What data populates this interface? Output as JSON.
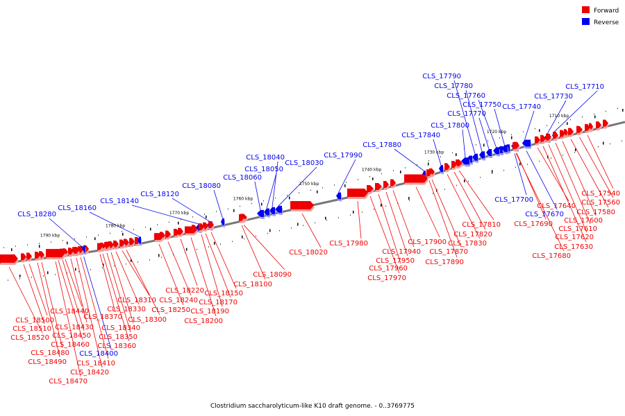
{
  "caption": "Clostridium saccharolyticum-like K10 draft genome. - 0..3769775",
  "legend": {
    "forward": {
      "label": "Forward",
      "color": "#ee0000"
    },
    "reverse": {
      "label": "Reverse",
      "color": "#0000ee"
    }
  },
  "colors": {
    "forward": "#ee0000",
    "reverse": "#0000ee",
    "axis": "#777777"
  },
  "scale": [
    "1710 kbp",
    "1720 kbp",
    "1730 kbp",
    "1740 kbp",
    "1750 kbp",
    "1760 kbp",
    "1770 kbp",
    "1780 kbp",
    "1790 kbp"
  ],
  "genes": [
    {
      "id": "CLS_17710",
      "strand": "reverse"
    },
    {
      "id": "CLS_17730",
      "strand": "reverse"
    },
    {
      "id": "CLS_17740",
      "strand": "reverse"
    },
    {
      "id": "CLS_17750",
      "strand": "reverse"
    },
    {
      "id": "CLS_17760",
      "strand": "reverse"
    },
    {
      "id": "CLS_17770",
      "strand": "reverse"
    },
    {
      "id": "CLS_17780",
      "strand": "reverse"
    },
    {
      "id": "CLS_17790",
      "strand": "reverse"
    },
    {
      "id": "CLS_17800",
      "strand": "reverse"
    },
    {
      "id": "CLS_17840",
      "strand": "reverse"
    },
    {
      "id": "CLS_17880",
      "strand": "reverse"
    },
    {
      "id": "CLS_17990",
      "strand": "reverse"
    },
    {
      "id": "CLS_18030",
      "strand": "reverse"
    },
    {
      "id": "CLS_18040",
      "strand": "reverse"
    },
    {
      "id": "CLS_18050",
      "strand": "reverse"
    },
    {
      "id": "CLS_18060",
      "strand": "reverse"
    },
    {
      "id": "CLS_18080",
      "strand": "reverse"
    },
    {
      "id": "CLS_18120",
      "strand": "reverse"
    },
    {
      "id": "CLS_18140",
      "strand": "reverse"
    },
    {
      "id": "CLS_18160",
      "strand": "reverse"
    },
    {
      "id": "CLS_18280",
      "strand": "reverse"
    },
    {
      "id": "CLS_17700",
      "strand": "reverse"
    },
    {
      "id": "CLS_17670",
      "strand": "reverse"
    },
    {
      "id": "CLS_18400",
      "strand": "reverse"
    },
    {
      "id": "CLS_17540",
      "strand": "forward"
    },
    {
      "id": "CLS_17560",
      "strand": "forward"
    },
    {
      "id": "CLS_17580",
      "strand": "forward"
    },
    {
      "id": "CLS_17600",
      "strand": "forward"
    },
    {
      "id": "CLS_17610",
      "strand": "forward"
    },
    {
      "id": "CLS_17620",
      "strand": "forward"
    },
    {
      "id": "CLS_17630",
      "strand": "forward"
    },
    {
      "id": "CLS_17640",
      "strand": "forward"
    },
    {
      "id": "CLS_17680",
      "strand": "forward"
    },
    {
      "id": "CLS_17690",
      "strand": "forward"
    },
    {
      "id": "CLS_17810",
      "strand": "forward"
    },
    {
      "id": "CLS_17820",
      "strand": "forward"
    },
    {
      "id": "CLS_17830",
      "strand": "forward"
    },
    {
      "id": "CLS_17870",
      "strand": "forward"
    },
    {
      "id": "CLS_17890",
      "strand": "forward"
    },
    {
      "id": "CLS_17900",
      "strand": "forward"
    },
    {
      "id": "CLS_17940",
      "strand": "forward"
    },
    {
      "id": "CLS_17950",
      "strand": "forward"
    },
    {
      "id": "CLS_17960",
      "strand": "forward"
    },
    {
      "id": "CLS_17970",
      "strand": "forward"
    },
    {
      "id": "CLS_17980",
      "strand": "forward"
    },
    {
      "id": "CLS_18020",
      "strand": "forward"
    },
    {
      "id": "CLS_18090",
      "strand": "forward"
    },
    {
      "id": "CLS_18100",
      "strand": "forward"
    },
    {
      "id": "CLS_18150",
      "strand": "forward"
    },
    {
      "id": "CLS_18170",
      "strand": "forward"
    },
    {
      "id": "CLS_18190",
      "strand": "forward"
    },
    {
      "id": "CLS_18200",
      "strand": "forward"
    },
    {
      "id": "CLS_18220",
      "strand": "forward"
    },
    {
      "id": "CLS_18240",
      "strand": "forward"
    },
    {
      "id": "CLS_18250",
      "strand": "forward"
    },
    {
      "id": "CLS_18300",
      "strand": "forward"
    },
    {
      "id": "CLS_18310",
      "strand": "forward"
    },
    {
      "id": "CLS_18330",
      "strand": "forward"
    },
    {
      "id": "CLS_18340",
      "strand": "forward"
    },
    {
      "id": "CLS_18350",
      "strand": "forward"
    },
    {
      "id": "CLS_18360",
      "strand": "forward"
    },
    {
      "id": "CLS_18370",
      "strand": "forward"
    },
    {
      "id": "CLS_18410",
      "strand": "forward"
    },
    {
      "id": "CLS_18420",
      "strand": "forward"
    },
    {
      "id": "CLS_18430",
      "strand": "forward"
    },
    {
      "id": "CLS_18440",
      "strand": "forward"
    },
    {
      "id": "CLS_18450",
      "strand": "forward"
    },
    {
      "id": "CLS_18460",
      "strand": "forward"
    },
    {
      "id": "CLS_18470",
      "strand": "forward"
    },
    {
      "id": "CLS_18480",
      "strand": "forward"
    },
    {
      "id": "CLS_18490",
      "strand": "forward"
    },
    {
      "id": "CLS_18500",
      "strand": "forward"
    },
    {
      "id": "CLS_18510",
      "strand": "forward"
    },
    {
      "id": "CLS_18520",
      "strand": "forward"
    }
  ]
}
